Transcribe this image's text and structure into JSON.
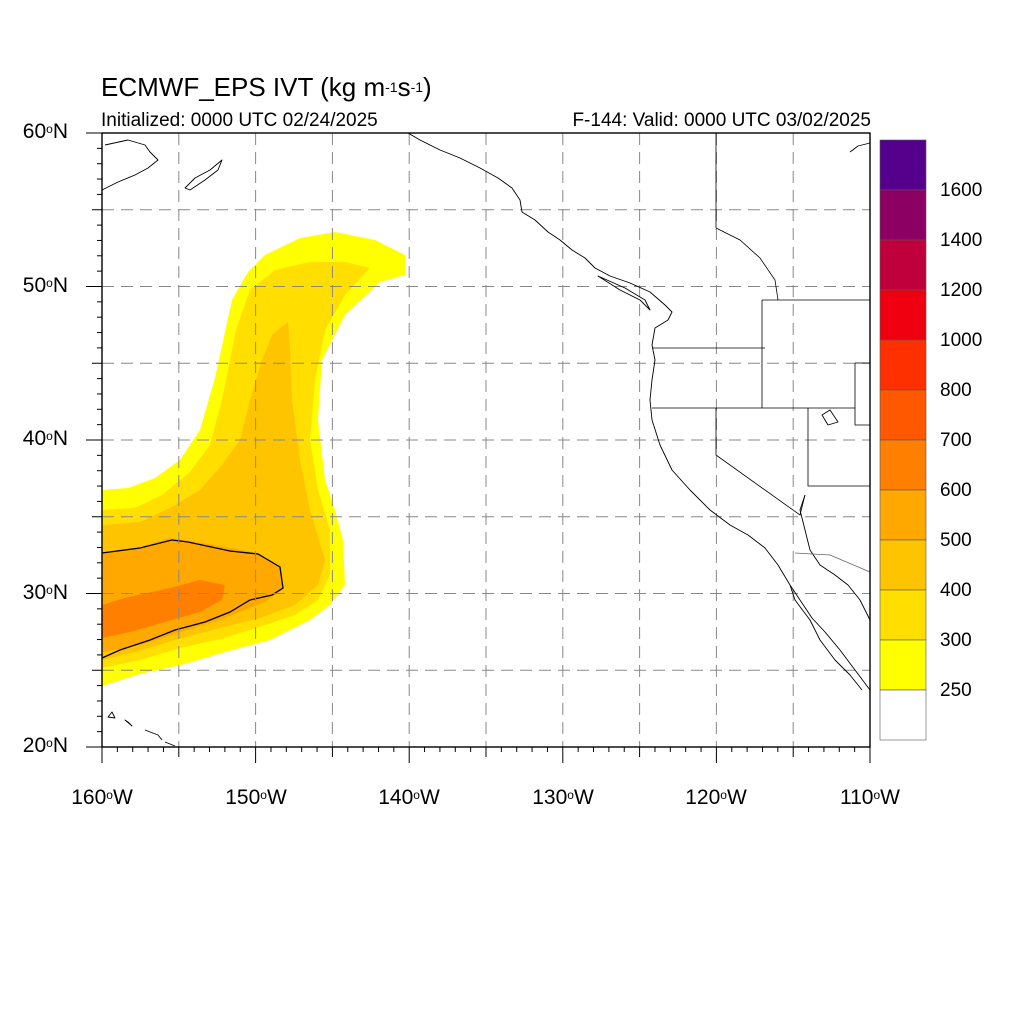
{
  "header": {
    "title_main": "ECMWF_EPS IVT (kg m",
    "title_sup1": "-1",
    "title_mid": "s",
    "title_sup2": "-1",
    "title_end": ")",
    "init_text": "Initialized: 0000 UTC 02/24/2025",
    "valid_text": "F-144: Valid: 0000 UTC 03/02/2025"
  },
  "axes": {
    "lat_labels": [
      {
        "num": "60",
        "deg": "o",
        "hemi": "N"
      },
      {
        "num": "50",
        "deg": "o",
        "hemi": "N"
      },
      {
        "num": "40",
        "deg": "o",
        "hemi": "N"
      },
      {
        "num": "30",
        "deg": "o",
        "hemi": "N"
      },
      {
        "num": "20",
        "deg": "o",
        "hemi": "N"
      }
    ],
    "lon_labels": [
      {
        "num": "160",
        "deg": "o",
        "hemi": "W"
      },
      {
        "num": "150",
        "deg": "o",
        "hemi": "W"
      },
      {
        "num": "140",
        "deg": "o",
        "hemi": "W"
      },
      {
        "num": "130",
        "deg": "o",
        "hemi": "W"
      },
      {
        "num": "120",
        "deg": "o",
        "hemi": "W"
      },
      {
        "num": "110",
        "deg": "o",
        "hemi": "W"
      }
    ],
    "lon_range": [
      -160,
      -110
    ],
    "lat_range": [
      20,
      60
    ],
    "grid": "dashed, every 5 degrees"
  },
  "colorbar": {
    "labels": [
      "1600",
      "1400",
      "1200",
      "1000",
      "800",
      "700",
      "600",
      "500",
      "400",
      "300",
      "250"
    ],
    "colors": [
      "#55008c",
      "#8c0064",
      "#c0003c",
      "#ee0010",
      "#ff3000",
      "#ff5800",
      "#ff8000",
      "#ffa800",
      "#ffc400",
      "#ffde00",
      "#ffff00",
      "#ffffff"
    ]
  },
  "fill_colors": {
    "c250": "#ffff00",
    "c300": "#ffde00",
    "c400": "#ffc400",
    "c500": "#ffa800",
    "c600": "#ff8000"
  }
}
